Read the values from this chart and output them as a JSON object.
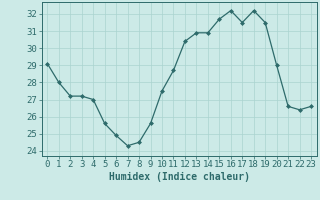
{
  "x": [
    0,
    1,
    2,
    3,
    4,
    5,
    6,
    7,
    8,
    9,
    10,
    11,
    12,
    13,
    14,
    15,
    16,
    17,
    18,
    19,
    20,
    21,
    22,
    23
  ],
  "y": [
    29.1,
    28.0,
    27.2,
    27.2,
    27.0,
    25.6,
    24.9,
    24.3,
    24.5,
    25.6,
    27.5,
    28.7,
    30.4,
    30.9,
    30.9,
    31.7,
    32.2,
    31.5,
    32.2,
    31.5,
    29.0,
    26.6,
    26.4,
    26.6
  ],
  "line_color": "#2e6b6b",
  "marker": "D",
  "marker_size": 2,
  "bg_color": "#cceae7",
  "grid_color": "#aad4d0",
  "title": "",
  "xlabel": "Humidex (Indice chaleur)",
  "ylabel": "",
  "xlim": [
    -0.5,
    23.5
  ],
  "ylim": [
    23.7,
    32.7
  ],
  "yticks": [
    24,
    25,
    26,
    27,
    28,
    29,
    30,
    31,
    32
  ],
  "xticks": [
    0,
    1,
    2,
    3,
    4,
    5,
    6,
    7,
    8,
    9,
    10,
    11,
    12,
    13,
    14,
    15,
    16,
    17,
    18,
    19,
    20,
    21,
    22,
    23
  ],
  "tick_color": "#2e6b6b",
  "label_color": "#2e6b6b",
  "xlabel_fontsize": 7,
  "tick_fontsize": 6.5
}
